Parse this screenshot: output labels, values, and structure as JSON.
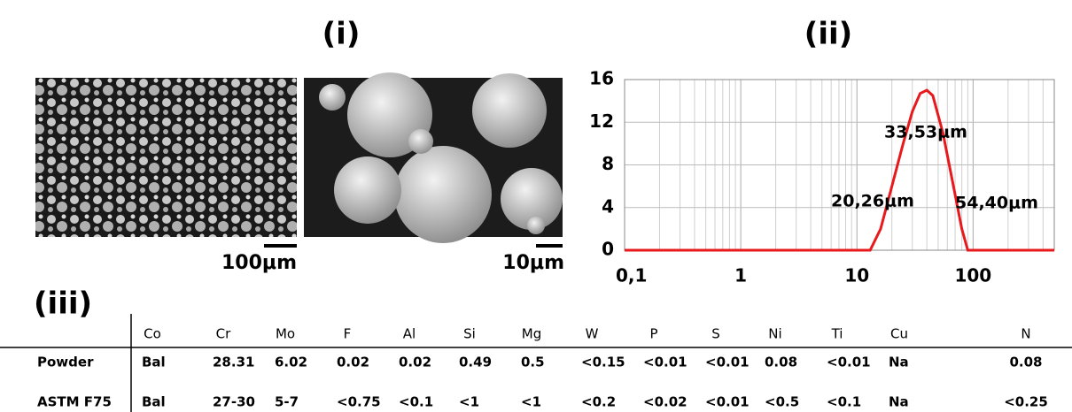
{
  "panel_labels": [
    "(i)",
    "(ii)",
    "(iii)"
  ],
  "scale_bars": [
    "100μm",
    "10μm"
  ],
  "chart_data": {
    "type": "line",
    "color": "#e8191c",
    "grid": true,
    "xscale": "log",
    "x": [
      0.1,
      10,
      13,
      16,
      20,
      25,
      30,
      35,
      40,
      45,
      55,
      65,
      80,
      90,
      100,
      500
    ],
    "values": [
      0,
      0,
      0,
      2,
      6,
      10,
      13,
      14.7,
      15,
      14.5,
      11,
      7,
      2,
      0,
      0,
      0
    ],
    "xlim": [
      0.1,
      500
    ],
    "ylim": [
      0,
      16
    ],
    "xticks": [
      {
        "value": 0.1,
        "label": "0,1"
      },
      1,
      10,
      100
    ],
    "xminorticks": [
      0.2,
      0.3,
      0.4,
      0.5,
      0.6,
      0.7,
      0.8,
      0.9,
      2,
      3,
      4,
      5,
      6,
      7,
      8,
      9,
      20,
      30,
      40,
      50,
      60,
      70,
      80,
      90,
      200,
      300,
      400,
      500
    ],
    "yticks": [
      0,
      4,
      8,
      12,
      16
    ],
    "annotations": [
      "33,53μm",
      "20,26μm",
      "54,40μm"
    ]
  },
  "table": {
    "header": [
      "Co",
      "Cr",
      "Mo",
      "F",
      "Al",
      "Si",
      "Mg",
      "W",
      "P",
      "S",
      "Ni",
      "Ti",
      "Cu",
      "N"
    ],
    "rows": [
      [
        "Powder",
        "Bal",
        "28.31",
        "6.02",
        "0.02",
        "0.02",
        "0.49",
        "0.5",
        "<0.15",
        "<0.01",
        "<0.01",
        "0.08",
        "<0.01",
        "Na",
        "0.08"
      ],
      [
        "ASTM F75",
        "Bal",
        "27-30",
        "5-7",
        "<0.75",
        "<0.1",
        "<1",
        "<1",
        "<0.2",
        "<0.02",
        "<0.01",
        "<0.5",
        "<0.1",
        "Na",
        "<0.25"
      ]
    ]
  }
}
